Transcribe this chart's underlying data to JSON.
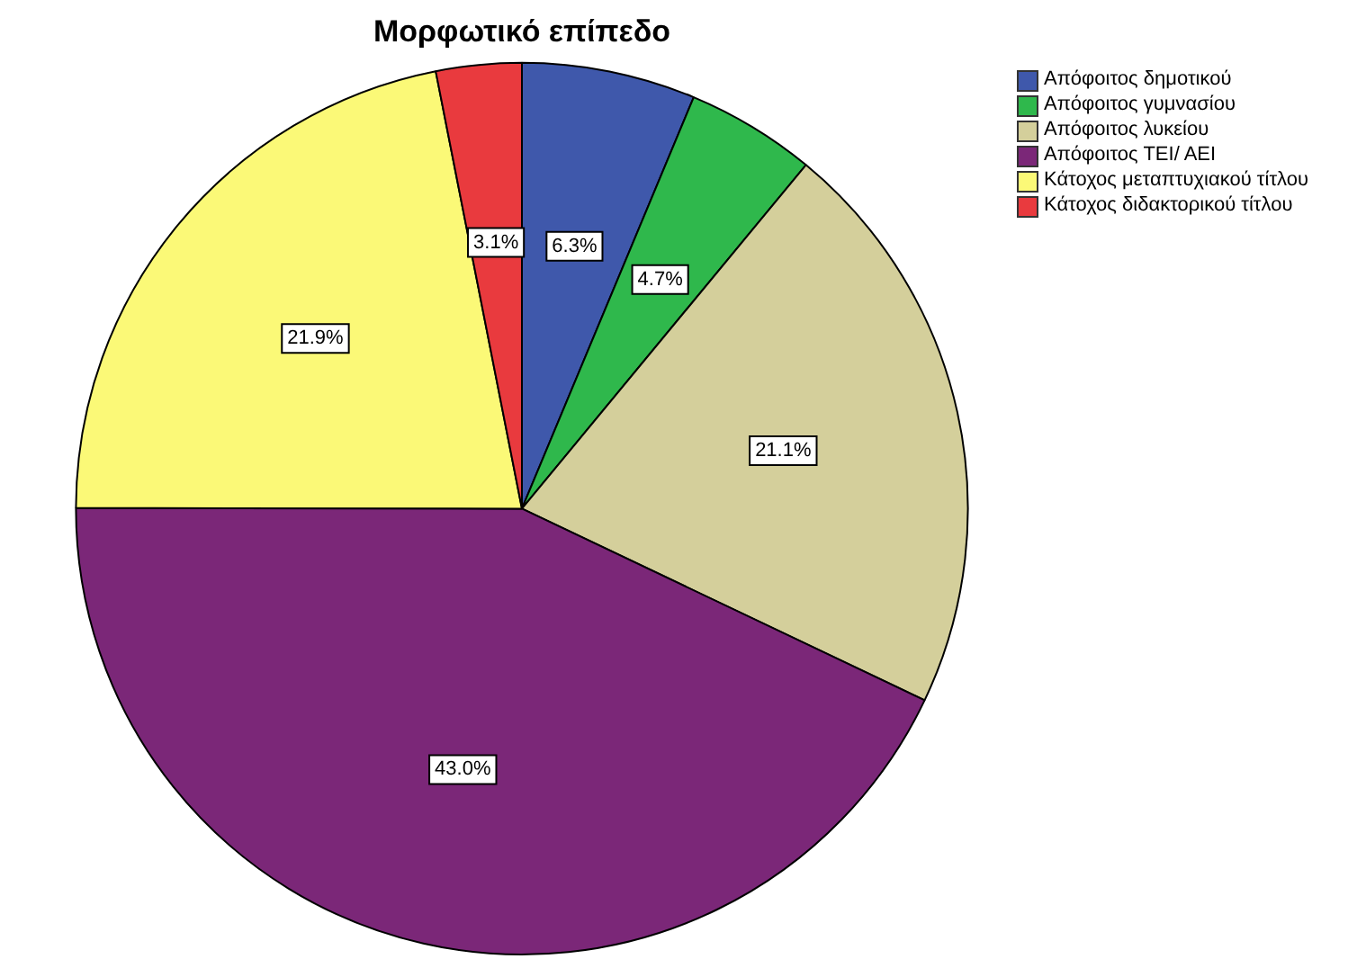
{
  "chart_data": {
    "type": "pie",
    "title": "Μορφωτικό επίπεδο",
    "categories": [
      "Απόφοιτος δημοτικού",
      "Απόφοιτος γυμνασίου",
      "Απόφοιτος λυκείου",
      "Απόφοιτος ΤΕΙ/ ΑΕΙ",
      "Κάτοχος μεταπτυχιακού τίτλου",
      "Κάτοχος διδακτορικού τίτλου"
    ],
    "values": [
      6.3,
      4.7,
      21.1,
      43.0,
      21.9,
      3.1
    ],
    "value_labels": [
      "6.3%",
      "4.7%",
      "21.1%",
      "43.0%",
      "21.9%",
      "3.1%"
    ],
    "colors": [
      "#3f58ab",
      "#2fb84c",
      "#d4cf9b",
      "#7b2778",
      "#fbf977",
      "#e93a3e"
    ],
    "legend": "top right"
  }
}
